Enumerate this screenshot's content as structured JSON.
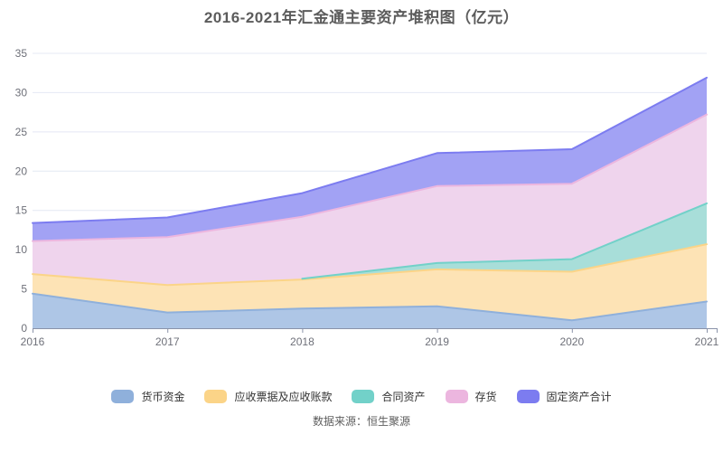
{
  "chart": {
    "title": "2016-2021年汇金通主要资产堆积图（亿元）",
    "source": "数据来源：恒生聚源"
  },
  "chart_data": {
    "type": "area",
    "stacked": true,
    "title": "2016-2021年汇金通主要资产堆积图（亿元）",
    "categories": [
      "2016",
      "2017",
      "2018",
      "2019",
      "2020",
      "2021"
    ],
    "series": [
      {
        "name": "货币资金",
        "color": "#8FB0DB",
        "fill": "#AEC6E6",
        "values": [
          4.4,
          2.0,
          2.5,
          2.8,
          1.0,
          3.4
        ]
      },
      {
        "name": "应收票据及应收账款",
        "color": "#FBD488",
        "fill": "#FDE3B5",
        "values": [
          2.5,
          3.5,
          3.7,
          4.7,
          6.2,
          7.3
        ]
      },
      {
        "name": "合同资产",
        "color": "#72D1C9",
        "fill": "#A8DED9",
        "values": [
          null,
          null,
          0.1,
          0.8,
          1.6,
          5.2
        ]
      },
      {
        "name": "存货",
        "color": "#ECB6DF",
        "fill": "#EFD4ED",
        "values": [
          4.2,
          6.1,
          7.9,
          9.8,
          9.6,
          11.3
        ]
      },
      {
        "name": "固定资产合计",
        "color": "#7C7CF0",
        "fill": "#A2A2F4",
        "values": [
          2.3,
          2.5,
          3.0,
          4.2,
          4.4,
          4.7
        ]
      }
    ],
    "stack_totals": [
      13.4,
      14.1,
      17.2,
      22.3,
      22.8,
      31.9
    ],
    "xlabel": "",
    "ylabel": "",
    "ylim": [
      0,
      35
    ],
    "ytick_step": 5,
    "grid": true,
    "legend_position": "bottom"
  },
  "colors": {
    "grid_line": "#E4E8F4",
    "axis_line": "#8A93A9",
    "axis_label": "#6E7079",
    "title_text": "#5C5C5C",
    "legend_text": "#333333",
    "source_text": "#5E5E5E"
  }
}
